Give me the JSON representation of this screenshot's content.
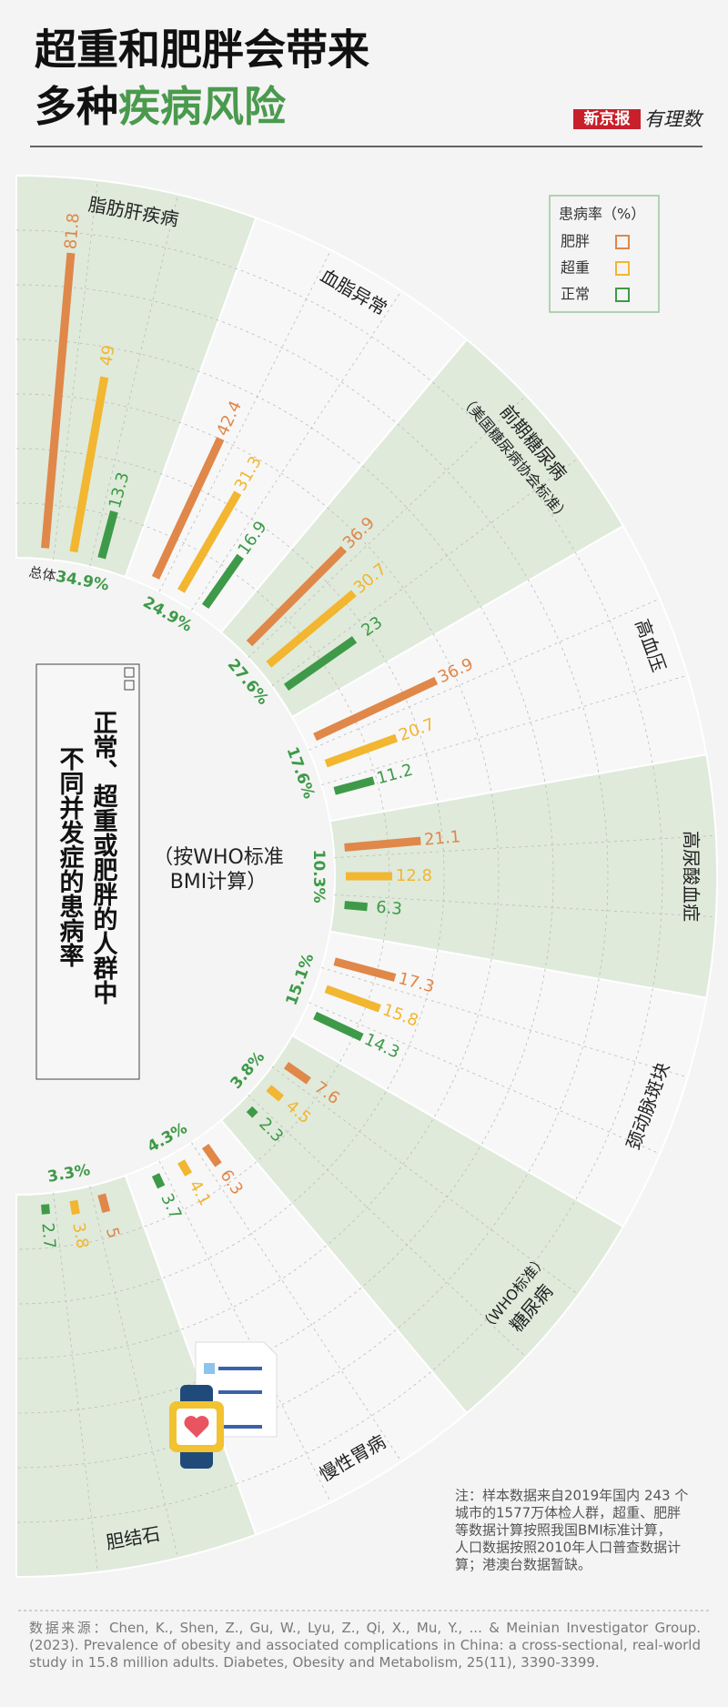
{
  "header": {
    "title_lines": [
      "超重和肥胖会带来",
      "多种"
    ],
    "title_highlight": "疾病风险",
    "brand": "新京报",
    "brand_sub": "有理数"
  },
  "chart_data": {
    "type": "radial-bar",
    "categories": [
      "脂肪肝疾病",
      "血脂异常",
      "前期糖尿病",
      "高血压",
      "高尿酸血症",
      "颈动脉斑块",
      "糖尿病",
      "慢性胃病",
      "胆结石"
    ],
    "category_notes": [
      null,
      null,
      "（美国糖尿病协会标准）",
      null,
      null,
      null,
      "（WHO标准）",
      null,
      null
    ],
    "series": [
      {
        "name": "肥胖",
        "color": "#e0874a",
        "values": [
          81.8,
          42.4,
          36.9,
          36.9,
          21.1,
          17.3,
          7.6,
          6.3,
          5
        ]
      },
      {
        "name": "超重",
        "color": "#f2b630",
        "values": [
          49,
          31.3,
          30.7,
          20.7,
          12.8,
          15.8,
          4.5,
          4.1,
          3.8
        ]
      },
      {
        "name": "正常",
        "color": "#3e9a48",
        "values": [
          13.3,
          16.9,
          23,
          11.2,
          6.3,
          14.3,
          2.3,
          3.7,
          2.7
        ]
      }
    ],
    "overall": {
      "label": "总体",
      "values": [
        34.9,
        24.9,
        27.6,
        17.6,
        10.3,
        15.1,
        3.8,
        4.3,
        3.3
      ],
      "value_labels": [
        "34.9%",
        "24.9%",
        "27.6%",
        "17.6%",
        "10.3%",
        "15.1%",
        "3.8%",
        "4.3%",
        "3.3%"
      ],
      "color": "#3e9a48"
    },
    "legend_title": "患病率（%）",
    "center_title": [
      "正常、超重或肥胖的人群中",
      "不同并发症的患病率"
    ],
    "center_subtitle": [
      "（按WHO标准",
      "BMI计算）"
    ],
    "ylim": [
      0,
      100
    ]
  },
  "note": [
    "注：样本数据来自2019年国内 243 个",
    "城市的1577万体检人群，超重、肥胖",
    "等数据计算按照我国BMI标准计算，",
    "人口数据按照2010年人口普查数据计",
    "算；港澳台数据暂缺。"
  ],
  "source": "数据来源：Chen, K., Shen, Z., Gu, W., Lyu, Z., Qi, X., Mu, Y., ... & Meinian Investigator Group. (2023). Prevalence of obesity and associated complications in China: a cross-sectional, real-world study in 15.8 million adults. Diabetes, Obesity and Metabolism, 25(11), 3390-3399."
}
